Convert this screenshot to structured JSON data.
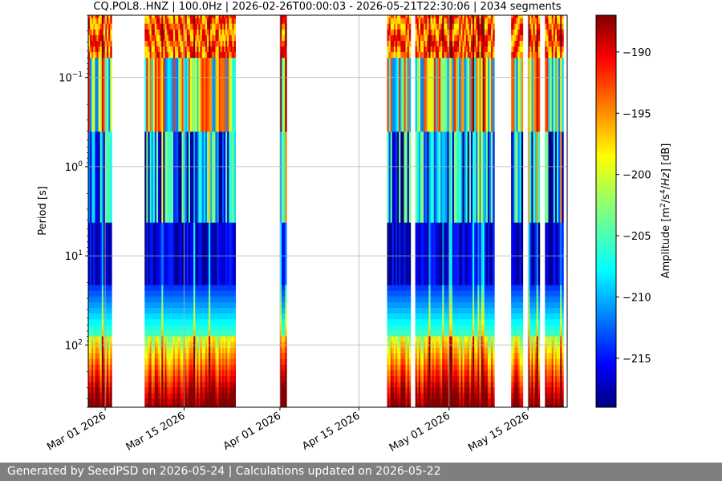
{
  "chart_data": {
    "type": "heatmap",
    "title": "CQ.POL8..HNZ | 100.0Hz | 2026-02-26T00:00:03 - 2026-05-21T22:30:06 | 2034 segments",
    "xlabel": "",
    "ylabel": "Period [s]",
    "y_scale": "log",
    "y_inverted": true,
    "x_range": [
      "2026-02-26",
      "2026-05-21"
    ],
    "ylim": [
      0.02,
      500
    ],
    "x_ticks": [
      "Mar 01 2026",
      "Mar 15 2026",
      "Apr 01 2026",
      "Apr 15 2026",
      "May 01 2026",
      "May 15 2026"
    ],
    "x_tick_dates": [
      "2026-03-01",
      "2026-03-15",
      "2026-04-01",
      "2026-04-15",
      "2026-05-01",
      "2026-05-15"
    ],
    "y_ticks": [
      "10^-1",
      "10^0",
      "10^1",
      "10^2"
    ],
    "y_tick_values": [
      0.1,
      1,
      10,
      100
    ],
    "grid": true,
    "colorbar": {
      "label": "Amplitude [m^2/s^4/Hz] [dB]",
      "range": [
        -219,
        -187
      ],
      "ticks": [
        -190,
        -195,
        -200,
        -205,
        -210,
        -215
      ],
      "colormap": "jet"
    },
    "data_coverage": [
      {
        "start": "2026-02-26",
        "end": "2026-03-02"
      },
      {
        "start": "2026-03-08",
        "end": "2026-03-24"
      },
      {
        "start": "2026-04-01",
        "end": "2026-04-02"
      },
      {
        "start": "2026-04-20",
        "end": "2026-04-24"
      },
      {
        "start": "2026-04-25",
        "end": "2026-05-09"
      },
      {
        "start": "2026-05-12",
        "end": "2026-05-14"
      },
      {
        "start": "2026-05-15",
        "end": "2026-05-17"
      },
      {
        "start": "2026-05-18",
        "end": "2026-05-21"
      }
    ]
  },
  "footer": {
    "text": "Generated by SeedPSD on 2026-05-24 | Calculations updated on 2026-05-22"
  },
  "colors": {
    "background": "#ffffff",
    "grid": "#b0b0b0",
    "footer_bg": "#7f7f7f",
    "footer_text": "#ffffff"
  }
}
